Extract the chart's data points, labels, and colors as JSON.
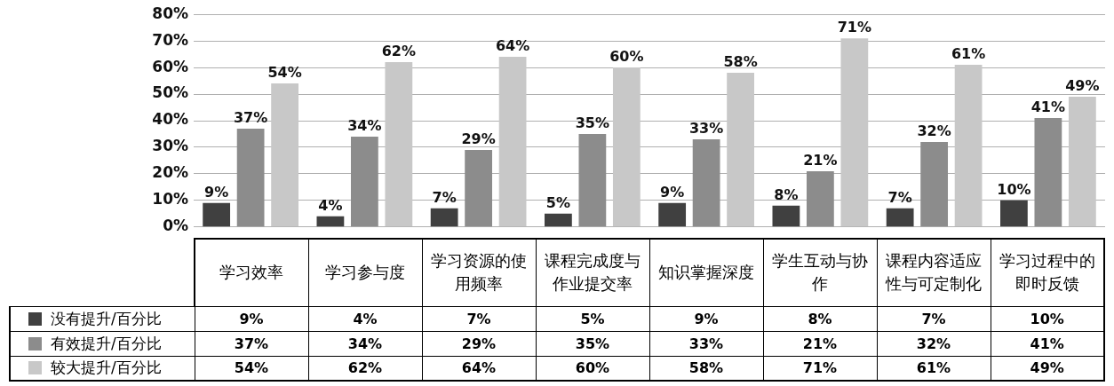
{
  "chart_data": {
    "type": "bar",
    "categories": [
      "学习效率",
      "学习参与度",
      "学习资源的使用频率",
      "课程完成度与作业提交率",
      "知识掌握深度",
      "学生互动与协作",
      "课程内容适应性与可定制化",
      "学习过程中的即时反馈"
    ],
    "series": [
      {
        "name": "没有提升/百分比",
        "color": "#404040",
        "values": [
          9,
          4,
          7,
          5,
          9,
          8,
          7,
          10
        ],
        "value_labels": [
          "9%",
          "4%",
          "7%",
          "5%",
          "9%",
          "8%",
          "7%",
          "10%"
        ]
      },
      {
        "name": "有效提升/百分比",
        "color": "#8c8c8c",
        "values": [
          37,
          34,
          29,
          35,
          33,
          21,
          32,
          41
        ],
        "value_labels": [
          "37%",
          "34%",
          "29%",
          "35%",
          "33%",
          "21%",
          "32%",
          "41%"
        ]
      },
      {
        "name": "较大提升/百分比",
        "color": "#c8c8c8",
        "values": [
          54,
          62,
          64,
          60,
          58,
          71,
          61,
          49
        ],
        "value_labels": [
          "54%",
          "62%",
          "64%",
          "60%",
          "58%",
          "71%",
          "61%",
          "49%"
        ]
      }
    ],
    "ylim": [
      0,
      80
    ],
    "yticks": [
      {
        "value": 0,
        "label": "0%"
      },
      {
        "value": 10,
        "label": "10%"
      },
      {
        "value": 20,
        "label": "20%"
      },
      {
        "value": 30,
        "label": "30%"
      },
      {
        "value": 40,
        "label": "40%"
      },
      {
        "value": 50,
        "label": "50%"
      },
      {
        "value": 60,
        "label": "60%"
      },
      {
        "value": 70,
        "label": "70%"
      },
      {
        "value": 80,
        "label": "80%"
      }
    ],
    "grid": "y",
    "legend": "bottom"
  }
}
